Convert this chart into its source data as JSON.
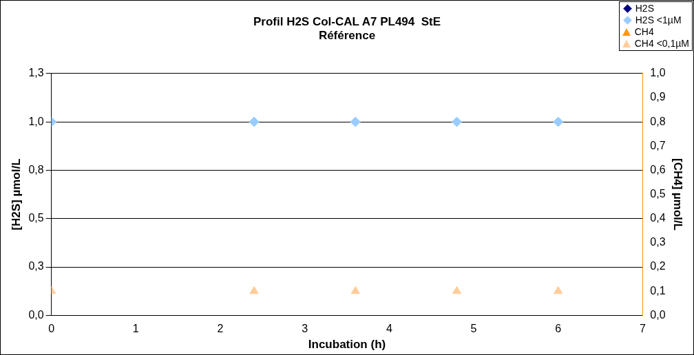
{
  "chart_data": {
    "type": "scatter",
    "title": [
      "Profil H2S Col-CAL A7 PL494  StE",
      "Référence"
    ],
    "xlabel": "Incubation (h)",
    "ylabel": "[H2S] µmol/L",
    "y2label": "[CH4] µmol/L",
    "x": [
      0,
      2.4,
      3.6,
      4.8,
      6
    ],
    "series": [
      {
        "name": "H2S",
        "color": "#000080",
        "marker": "diamond",
        "values": [
          null,
          null,
          null,
          null,
          null
        ]
      },
      {
        "name": "H2S <1µM",
        "color": "#99ccff",
        "marker": "diamond",
        "values": [
          1.04,
          1.04,
          1.04,
          1.04,
          1.04
        ]
      },
      {
        "name": "CH4",
        "color": "#ff9900",
        "marker": "triangle",
        "axis": "y2",
        "values": [
          null,
          null,
          null,
          null,
          null
        ]
      },
      {
        "name": "CH4 <0,1µM",
        "color": "#ffcc99",
        "marker": "triangle",
        "axis": "y2",
        "values": [
          0.1,
          0.1,
          0.1,
          0.1,
          0.1
        ]
      }
    ],
    "xlim": [
      0,
      7
    ],
    "xticks": [
      0,
      1,
      2,
      3,
      4,
      5,
      6,
      7
    ],
    "ylim": [
      0,
      1.3
    ],
    "yticks": [
      {
        "value": 0,
        "label": "0,0"
      },
      {
        "value": 0.26,
        "label": "0,3"
      },
      {
        "value": 0.52,
        "label": "0,5"
      },
      {
        "value": 0.78,
        "label": "0,8"
      },
      {
        "value": 1.04,
        "label": "1,0"
      },
      {
        "value": 1.3,
        "label": "1,3"
      }
    ],
    "y2lim": [
      0,
      1
    ],
    "y2ticks": [
      {
        "value": 0,
        "label": "0,0"
      },
      {
        "value": 0.1,
        "label": "0,1"
      },
      {
        "value": 0.2,
        "label": "0,2"
      },
      {
        "value": 0.3,
        "label": "0,3"
      },
      {
        "value": 0.4,
        "label": "0,4"
      },
      {
        "value": 0.5,
        "label": "0,5"
      },
      {
        "value": 0.6,
        "label": "0,6"
      },
      {
        "value": 0.7,
        "label": "0,7"
      },
      {
        "value": 0.8,
        "label": "0,8"
      },
      {
        "value": 0.9,
        "label": "0,9"
      },
      {
        "value": 1,
        "label": "1,0"
      }
    ],
    "grid": "y",
    "legend": "top right"
  }
}
